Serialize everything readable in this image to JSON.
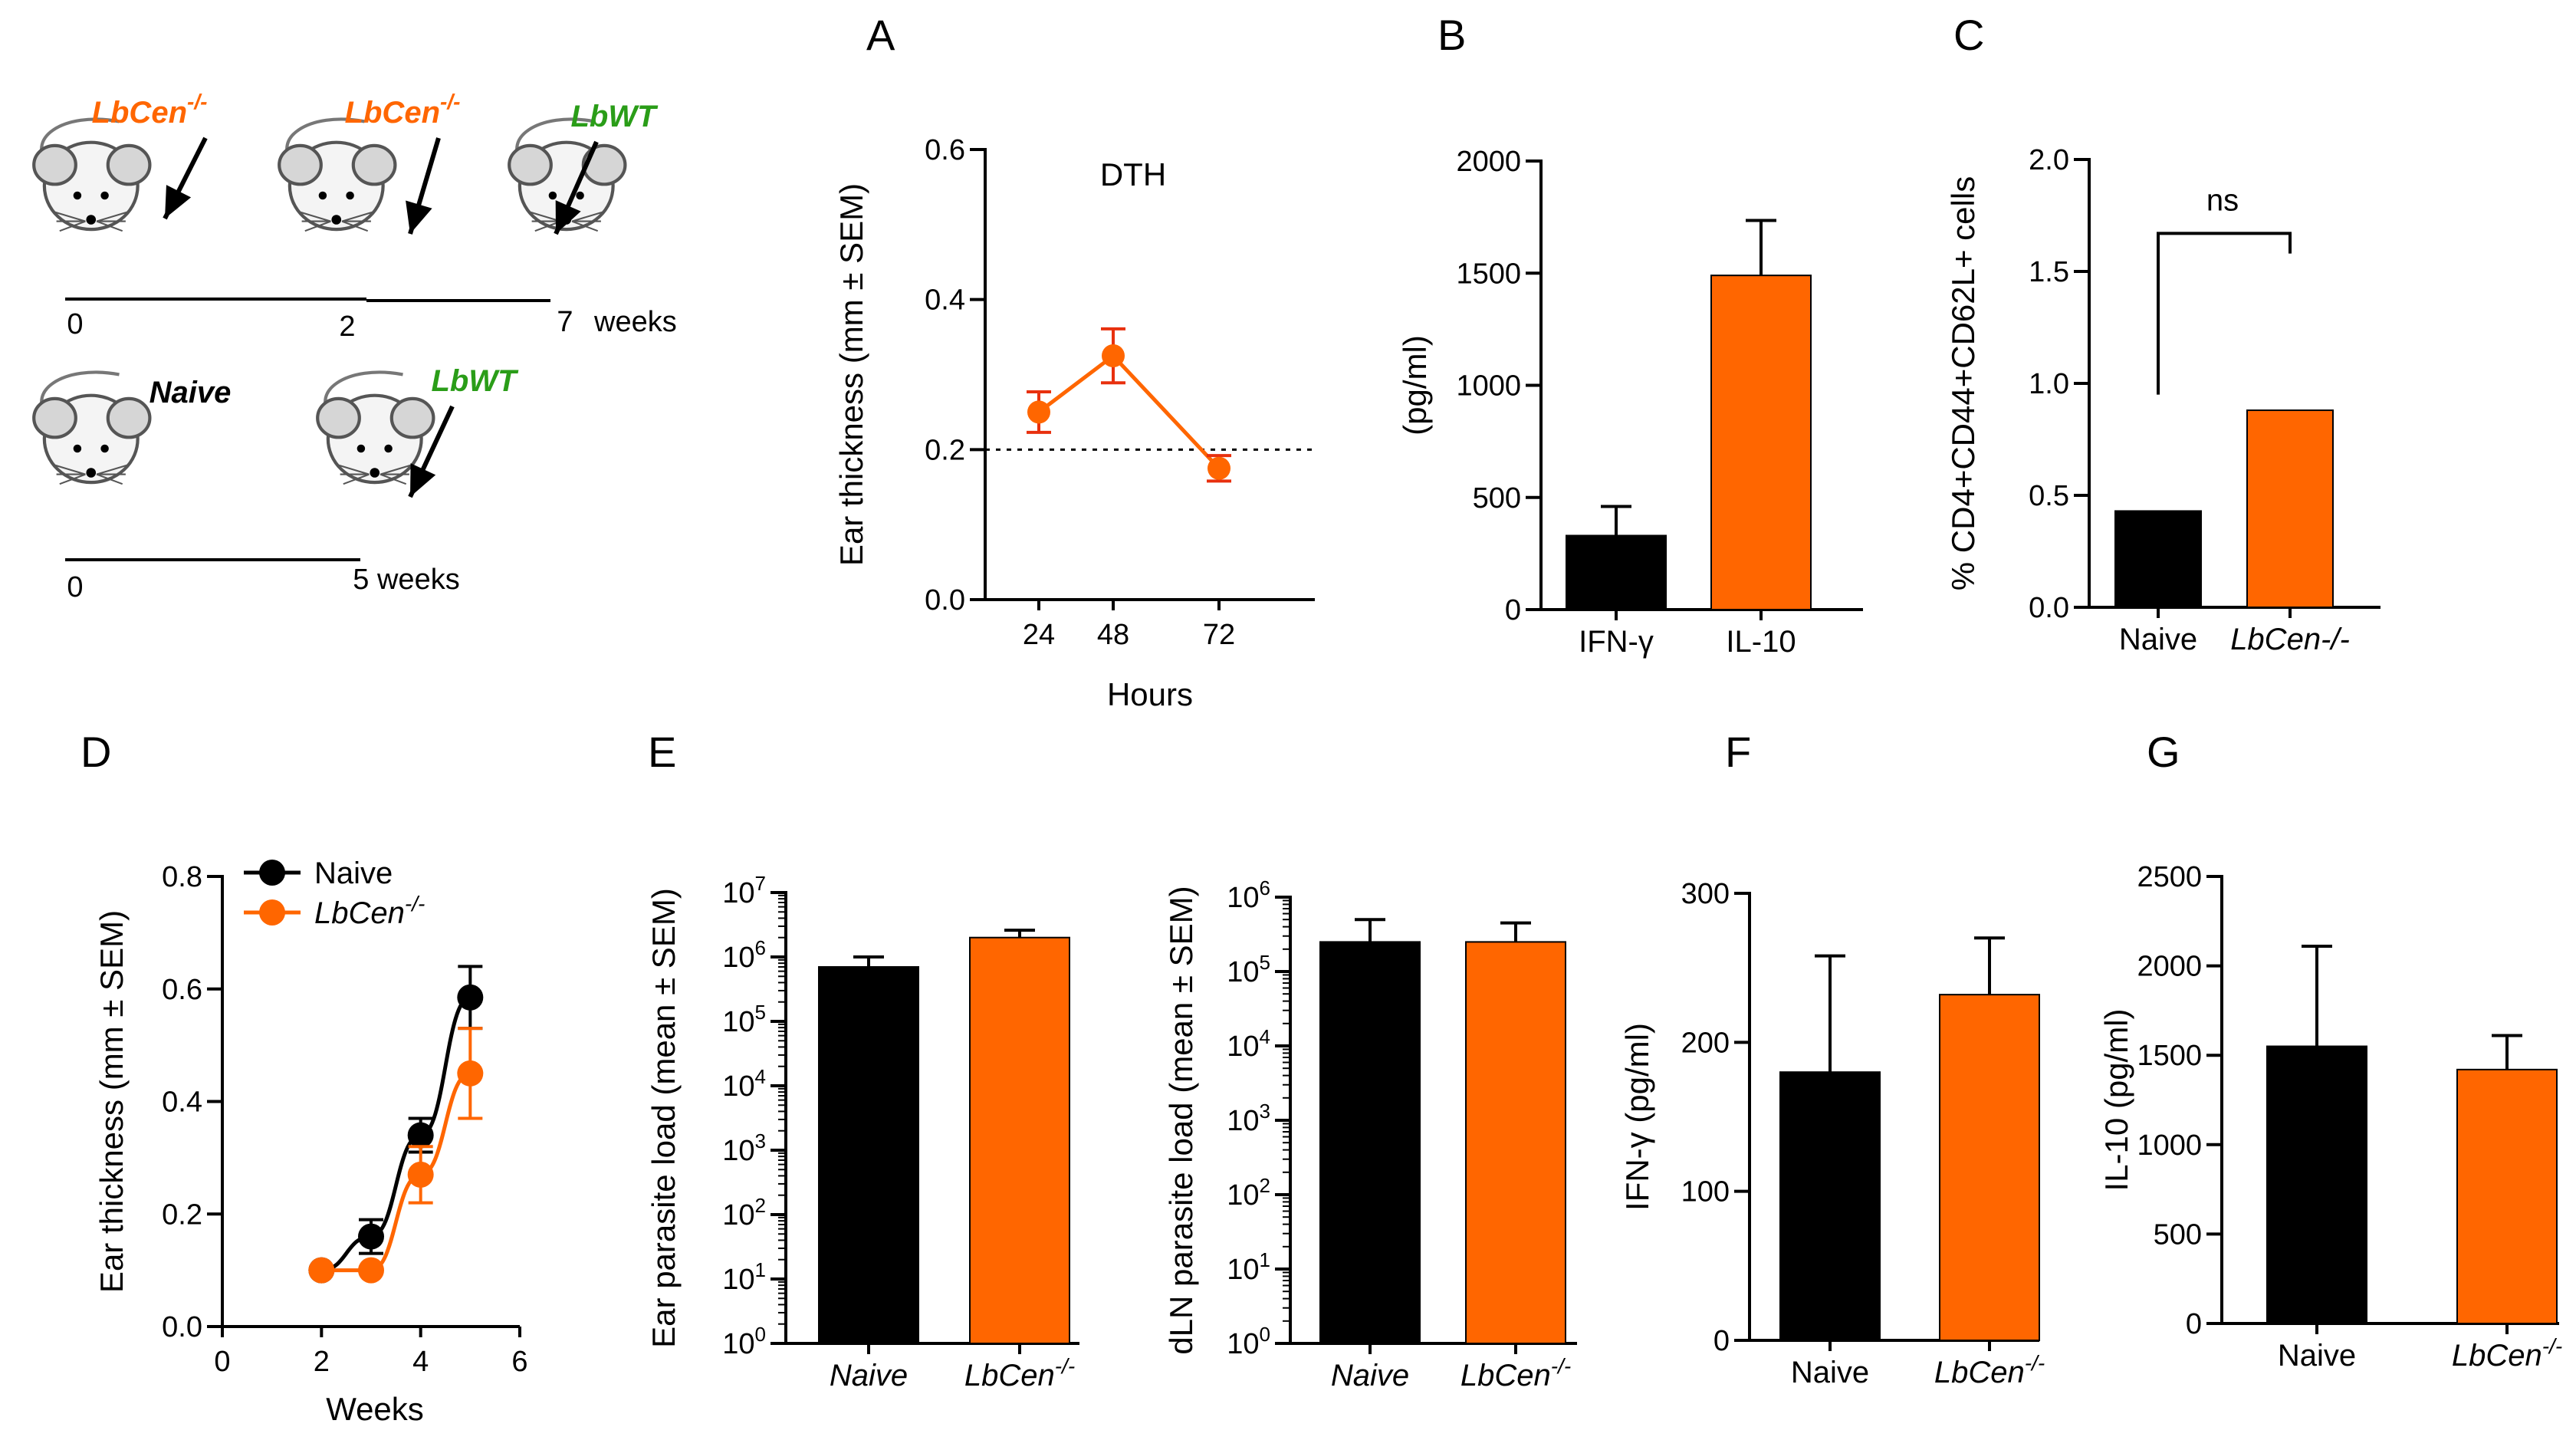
{
  "colors": {
    "black": "#000000",
    "orange": "#ff6600",
    "red": "#e8300e",
    "green": "#2a9d18",
    "bar_edge": "#000000"
  },
  "schematic": {
    "row1": {
      "mice": [
        {
          "label": "LbCen",
          "sup": "-/-",
          "color": "orange"
        },
        {
          "label": "LbCen",
          "sup": "-/-",
          "color": "orange"
        },
        {
          "label": "LbWT",
          "sup": "",
          "color": "green"
        }
      ],
      "ticks": [
        "0",
        "2",
        "7"
      ],
      "unit": "weeks"
    },
    "row2": {
      "mice": [
        {
          "label": "Naive",
          "sup": "",
          "color": "black"
        },
        {
          "label": "LbWT",
          "sup": "",
          "color": "green"
        }
      ],
      "ticks": [
        "0",
        "5 weeks"
      ]
    }
  },
  "chart_data": [
    {
      "id": "A",
      "letter": "A",
      "type": "line",
      "annotation": "DTH",
      "xlabel": "Hours",
      "ylabel": "Ear thickness (mm ± SEM)",
      "categories": [
        "24",
        "48",
        "72"
      ],
      "ylim": [
        0,
        0.6
      ],
      "yticks": [
        "0.0",
        "0.2",
        "0.4",
        "0.6"
      ],
      "reference_line": 0.2,
      "series": [
        {
          "name": "DTH",
          "color": "orange",
          "values": [
            0.25,
            0.325,
            0.175
          ],
          "errors": [
            0.027,
            0.036,
            0.017
          ]
        }
      ]
    },
    {
      "id": "B",
      "letter": "B",
      "type": "bar",
      "ylabel": "(pg/ml)",
      "categories": [
        "IFN-γ",
        "IL-10"
      ],
      "ylim": [
        0,
        2000
      ],
      "yticks": [
        "0",
        "500",
        "1000",
        "1500",
        "2000"
      ],
      "values": [
        330,
        1490
      ],
      "errors": [
        130,
        245
      ],
      "bar_colors": [
        "black",
        "orange"
      ]
    },
    {
      "id": "C",
      "letter": "C",
      "type": "bar",
      "ylabel": "% CD4+CD44+CD62L+ cells",
      "categories": [
        "Naive",
        "LbCen-/-"
      ],
      "ylim": [
        0,
        2.0
      ],
      "yticks": [
        "0.0",
        "0.5",
        "1.0",
        "1.5",
        "2.0"
      ],
      "values": [
        0.43,
        0.88
      ],
      "errors": [
        0,
        0
      ],
      "bar_colors": [
        "black",
        "orange"
      ],
      "significance": "ns"
    },
    {
      "id": "D",
      "letter": "D",
      "type": "line",
      "xlabel": "Weeks",
      "ylabel": "Ear thickness (mm ± SEM)",
      "xlim": [
        0,
        6
      ],
      "xticks": [
        "0",
        "2",
        "4",
        "6"
      ],
      "ylim": [
        0,
        0.8
      ],
      "yticks": [
        "0.0",
        "0.2",
        "0.4",
        "0.6",
        "0.8"
      ],
      "legend": "top-left",
      "series": [
        {
          "name": "Naive",
          "sup": "",
          "color": "black",
          "x": [
            2,
            3,
            4,
            5
          ],
          "values": [
            0.1,
            0.16,
            0.34,
            0.585
          ],
          "errors": [
            0,
            0.03,
            0.03,
            0.055
          ]
        },
        {
          "name": "LbCen",
          "sup": "-/-",
          "color": "orange",
          "x": [
            2,
            3,
            4,
            5
          ],
          "values": [
            0.1,
            0.1,
            0.27,
            0.45
          ],
          "errors": [
            0,
            0,
            0.05,
            0.08
          ]
        }
      ]
    },
    {
      "id": "E1",
      "letter": "E",
      "type": "bar",
      "yscale": "log",
      "ylabel": "Ear parasite load (mean ± SEM)",
      "categories": [
        "Naive",
        "LbCen"
      ],
      "category_sup": [
        "",
        "-/-"
      ],
      "ylim": [
        1,
        10000000
      ],
      "yticks_exp": [
        "0",
        "1",
        "2",
        "3",
        "4",
        "5",
        "6",
        "7"
      ],
      "values": [
        700000,
        2000000
      ],
      "errors": [
        300000,
        600000
      ],
      "bar_colors": [
        "black",
        "orange"
      ]
    },
    {
      "id": "E2",
      "letter": "",
      "type": "bar",
      "yscale": "log",
      "ylabel": "dLN parasite load (mean ± SEM)",
      "categories": [
        "Naive",
        "LbCen"
      ],
      "category_sup": [
        "",
        "-/-"
      ],
      "ylim": [
        1,
        1000000
      ],
      "yticks_exp": [
        "0",
        "1",
        "2",
        "3",
        "4",
        "5",
        "6"
      ],
      "values": [
        250000,
        250000
      ],
      "errors": [
        250000,
        200000
      ],
      "bar_colors": [
        "black",
        "orange"
      ]
    },
    {
      "id": "F",
      "letter": "F",
      "type": "bar",
      "ylabel": "IFN-γ (pg/ml)",
      "categories": [
        "Naive",
        "LbCen"
      ],
      "category_sup": [
        "",
        "-/-"
      ],
      "ylim": [
        0,
        300
      ],
      "yticks": [
        "0",
        "100",
        "200",
        "300"
      ],
      "values": [
        180,
        232
      ],
      "errors": [
        78,
        38
      ],
      "bar_colors": [
        "black",
        "orange"
      ]
    },
    {
      "id": "G",
      "letter": "G",
      "type": "bar",
      "ylabel": "IL-10 (pg/ml)",
      "categories": [
        "Naive",
        "LbCen"
      ],
      "category_sup": [
        "",
        "-/-"
      ],
      "ylim": [
        0,
        2500
      ],
      "yticks": [
        "0",
        "500",
        "1000",
        "1500",
        "2000",
        "2500"
      ],
      "values": [
        1550,
        1420
      ],
      "errors": [
        560,
        190
      ],
      "bar_colors": [
        "black",
        "orange"
      ]
    }
  ]
}
